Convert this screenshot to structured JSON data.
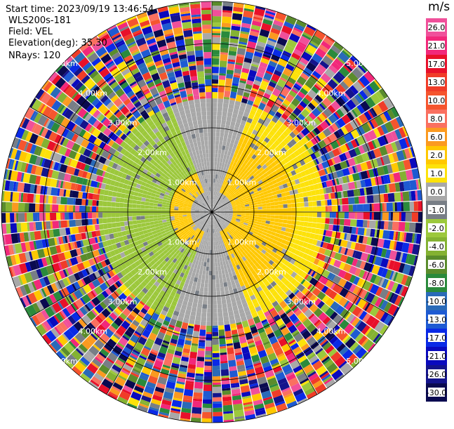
{
  "header": {
    "start_time": "Start time: 2023/09/19 13:46:54",
    "instrument": "WLS200s-181",
    "field": "Field: VEL",
    "elevation": "Elevation(deg): 35.30",
    "nrays": "NRays: 120"
  },
  "colorbar": {
    "unit": "m/s",
    "ticks": [
      "26.0",
      "21.0",
      "17.0",
      "13.0",
      "10.0",
      "8.0",
      "6.0",
      "2.0",
      "1.0",
      "0.0",
      "-1.0",
      "-2.0",
      "-4.0",
      "-6.0",
      "-8.0",
      "-10.0",
      "-13.0",
      "-17.0",
      "-21.0",
      "-26.0",
      "-30.0"
    ],
    "colors": [
      "#f0509a",
      "#f2287a",
      "#e8102a",
      "#f03c28",
      "#f5552e",
      "#fa7060",
      "#fb9a20",
      "#ffc800",
      "#fde20a",
      "#a8a8a8",
      "#787e86",
      "#9cc83c",
      "#84b232",
      "#5a8c2c",
      "#2a8a3c",
      "#2a6ab8",
      "#1e5ad2",
      "#0a2ae6",
      "#0a0abe",
      "#14148c",
      "#0a0a50"
    ]
  },
  "chart_data": {
    "type": "heatmap",
    "title": "",
    "projection": "polar PPI",
    "field": "VEL",
    "units": "m/s",
    "nrays": 120,
    "elevation_deg": 35.3,
    "range_rings_km": [
      1.0,
      2.0,
      3.0,
      4.0,
      5.0
    ],
    "ring_labels": [
      "1.00km",
      "2.00km",
      "3.00km",
      "4.00km",
      "5.00km"
    ],
    "max_range_km": 5.0,
    "zones": [
      {
        "from_km": 0.0,
        "to_km": 0.5,
        "description": "mixed near-zero core",
        "dominant": "0.0"
      },
      {
        "from_km": 0.5,
        "to_km": 1.0,
        "east_value": 2.0,
        "west_value": 2.0,
        "north_south_value": 0.0
      },
      {
        "from_km": 1.0,
        "to_km": 2.0,
        "east_value": 2.0,
        "west_value": -2.0,
        "north_south_value": 0.0
      },
      {
        "from_km": 2.0,
        "to_km": 2.7,
        "east_value": 1.0,
        "west_value": -2.0,
        "north_south_value": 0.0
      },
      {
        "from_km": 2.7,
        "to_km": 5.0,
        "description": "noise, random values across full colour scale"
      }
    ]
  }
}
